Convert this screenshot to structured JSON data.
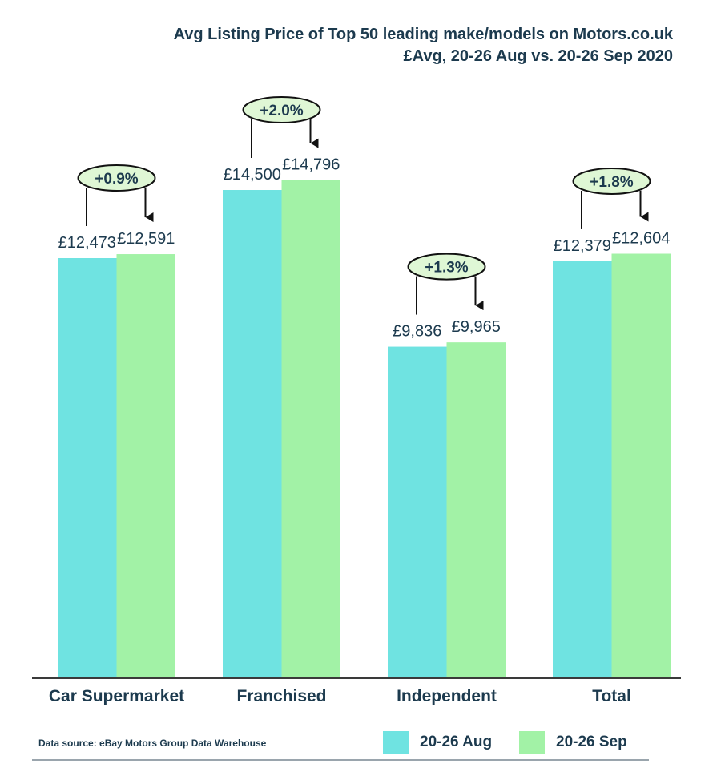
{
  "chart_data": {
    "type": "bar",
    "title": "Avg Listing Price of Top 50 leading make/models on Motors.co.uk",
    "subtitle": "£Avg, 20-26 Aug vs. 20-26 Sep 2020",
    "categories": [
      "Car Supermarket",
      "Franchised",
      "Independent",
      "Total"
    ],
    "series": [
      {
        "name": "20-26 Aug",
        "color": "#6fe3e1",
        "values": [
          12473,
          14500,
          9836,
          12379
        ],
        "labels": [
          "£12,473",
          "£14,500",
          "£9,836",
          "£12,379"
        ]
      },
      {
        "name": "20-26 Sep",
        "color": "#a2f2a6",
        "values": [
          12591,
          14796,
          9965,
          12604
        ],
        "labels": [
          "£12,591",
          "£14,796",
          "£9,965",
          "£12,604"
        ]
      }
    ],
    "annotations": [
      "+0.9%",
      "+2.0%",
      "+1.3%",
      "+1.8%"
    ],
    "annotation_fill": "#dff7d5",
    "ylim": [
      0,
      20000
    ],
    "grid": false,
    "y_axis_shown": false,
    "legend": "bottom-right",
    "source": "Data source: eBay Motors Group Data Warehouse"
  }
}
